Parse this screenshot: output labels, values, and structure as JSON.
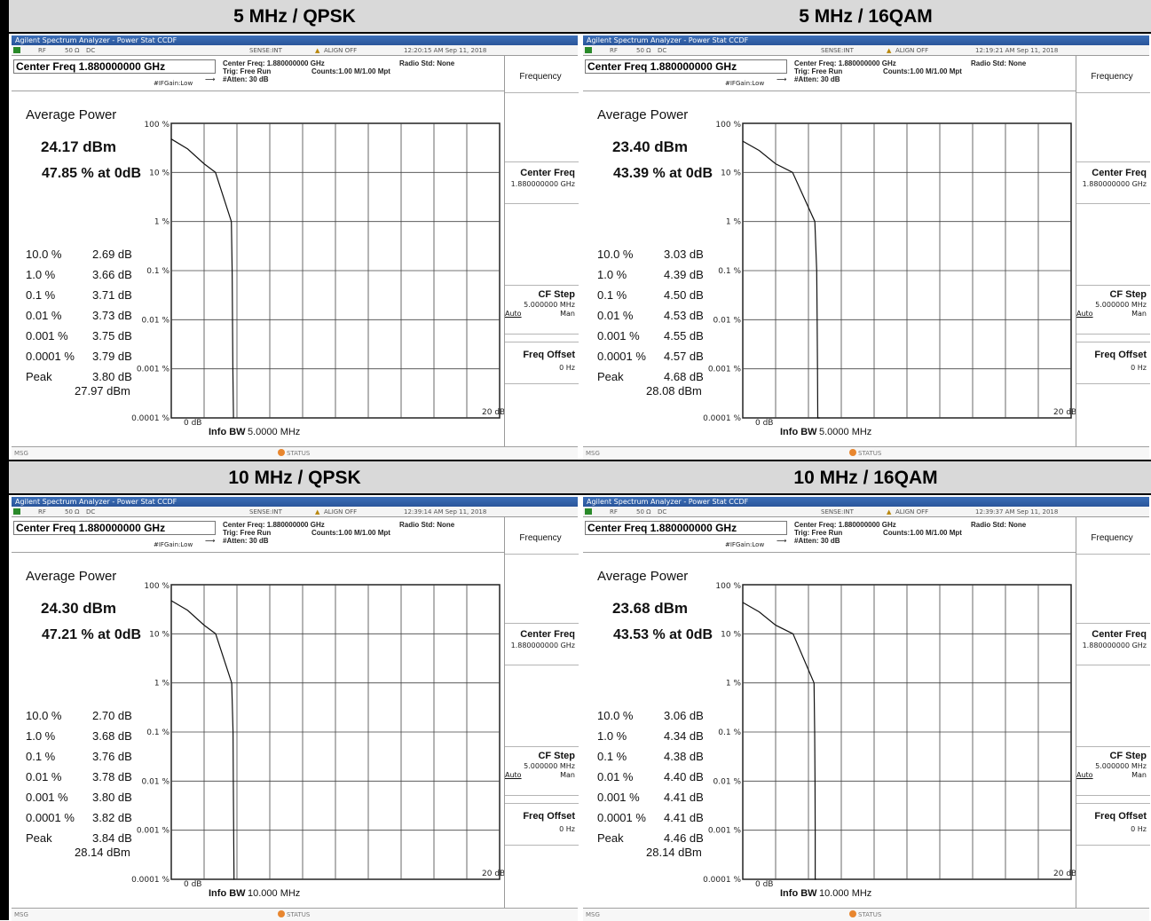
{
  "common": {
    "window_title": "Agilent Spectrum Analyzer - Power Stat CCDF",
    "status_rf": "RF",
    "status_50ohm": "50 Ω",
    "status_dc": "DC",
    "status_sense": "SENSE:INT",
    "status_align": "ALIGN OFF",
    "center_freq_main": "Center Freq 1.880000000 GHz",
    "if_gain": "#IFGain:Low",
    "trig_icon": "⟶",
    "meas_center": "Center Freq: 1.880000000 GHz",
    "meas_trig": "Trig: Free Run",
    "meas_atten": "#Atten: 30 dB",
    "meas_counts": "Counts:1.00 M/1.00 Mpt",
    "radio_std": "Radio Std: None",
    "avg_title": "Average Power",
    "sk_frequency": "Frequency",
    "sk_center_freq": "Center Freq",
    "sk_center_freq_val": "1.880000000 GHz",
    "sk_cf_step": "CF Step",
    "sk_cf_step_val": "5.000000 MHz",
    "sk_auto": "Auto",
    "sk_man": "Man",
    "sk_freq_offset": "Freq Offset",
    "sk_freq_offset_val": "0 Hz",
    "y_ticks": [
      "100 %",
      "10 %",
      "1 %",
      "0.1 %",
      "0.01 %",
      "0.001 %",
      "0.0001 %"
    ],
    "x_start": "0 dB",
    "x_end": "20 dB",
    "info_bw_label": "Info BW",
    "msg": "MSG",
    "status": "STATUS",
    "prob_labels": [
      "10.0 %",
      "1.0 %",
      "0.1 %",
      "0.01 %",
      "0.001 %",
      "0.0001 %",
      "Peak"
    ]
  },
  "panels": [
    {
      "caption": "5 MHz / QPSK",
      "timestamp": "12:20:15 AM Sep 11, 2018",
      "avg_power_dbm": "24.17 dBm",
      "avg_pct": "47.85 % at 0dB",
      "values": [
        "2.69 dB",
        "3.66 dB",
        "3.71 dB",
        "3.73 dB",
        "3.75 dB",
        "3.79 dB",
        "3.80 dB"
      ],
      "peak_dbm": "27.97 dBm",
      "info_bw": "5.0000 MHz",
      "chart_data": {
        "type": "line",
        "x_unit": "dB",
        "xlim": [
          0,
          20
        ],
        "y_scale": "log",
        "ylim": [
          0.0001,
          100
        ],
        "x": [
          0,
          1,
          2,
          2.69,
          3.66,
          3.71,
          3.73,
          3.75,
          3.79,
          3.8
        ],
        "y": [
          47.85,
          30,
          15,
          10,
          1,
          0.1,
          0.01,
          0.001,
          0.0001,
          0.0001
        ]
      }
    },
    {
      "caption": "5 MHz / 16QAM",
      "timestamp": "12:19:21 AM Sep 11, 2018",
      "avg_power_dbm": "23.40 dBm",
      "avg_pct": "43.39 % at 0dB",
      "values": [
        "3.03 dB",
        "4.39 dB",
        "4.50 dB",
        "4.53 dB",
        "4.55 dB",
        "4.57 dB",
        "4.68 dB"
      ],
      "peak_dbm": "28.08 dBm",
      "info_bw": "5.0000 MHz",
      "chart_data": {
        "type": "line",
        "x_unit": "dB",
        "xlim": [
          0,
          20
        ],
        "y_scale": "log",
        "ylim": [
          0.0001,
          100
        ],
        "x": [
          0,
          1,
          2,
          3.03,
          4.39,
          4.5,
          4.53,
          4.55,
          4.57,
          4.68
        ],
        "y": [
          43.39,
          28,
          15,
          10,
          1,
          0.1,
          0.01,
          0.001,
          0.0001,
          0.0001
        ]
      }
    },
    {
      "caption": "10 MHz / QPSK",
      "timestamp": "12:39:14 AM Sep 11, 2018",
      "avg_power_dbm": "24.30 dBm",
      "avg_pct": "47.21 % at 0dB",
      "values": [
        "2.70 dB",
        "3.68 dB",
        "3.76 dB",
        "3.78 dB",
        "3.80 dB",
        "3.82 dB",
        "3.84 dB"
      ],
      "peak_dbm": "28.14 dBm",
      "info_bw": "10.000 MHz",
      "chart_data": {
        "type": "line",
        "x_unit": "dB",
        "xlim": [
          0,
          20
        ],
        "y_scale": "log",
        "ylim": [
          0.0001,
          100
        ],
        "x": [
          0,
          1,
          2,
          2.7,
          3.68,
          3.76,
          3.78,
          3.8,
          3.82,
          3.84
        ],
        "y": [
          47.21,
          30,
          15,
          10,
          1,
          0.1,
          0.01,
          0.001,
          0.0001,
          0.0001
        ]
      }
    },
    {
      "caption": "10 MHz / 16QAM",
      "timestamp": "12:39:37 AM Sep 11, 2018",
      "avg_power_dbm": "23.68 dBm",
      "avg_pct": "43.53 % at 0dB",
      "values": [
        "3.06 dB",
        "4.34 dB",
        "4.38 dB",
        "4.40 dB",
        "4.41 dB",
        "4.41 dB",
        "4.46 dB"
      ],
      "peak_dbm": "28.14 dBm",
      "info_bw": "10.000 MHz",
      "chart_data": {
        "type": "line",
        "x_unit": "dB",
        "xlim": [
          0,
          20
        ],
        "y_scale": "log",
        "ylim": [
          0.0001,
          100
        ],
        "x": [
          0,
          1,
          2,
          3.06,
          4.34,
          4.38,
          4.4,
          4.41,
          4.41,
          4.46
        ],
        "y": [
          43.53,
          28,
          15,
          10,
          1,
          0.1,
          0.01,
          0.001,
          0.0001,
          0.0001
        ]
      }
    }
  ]
}
